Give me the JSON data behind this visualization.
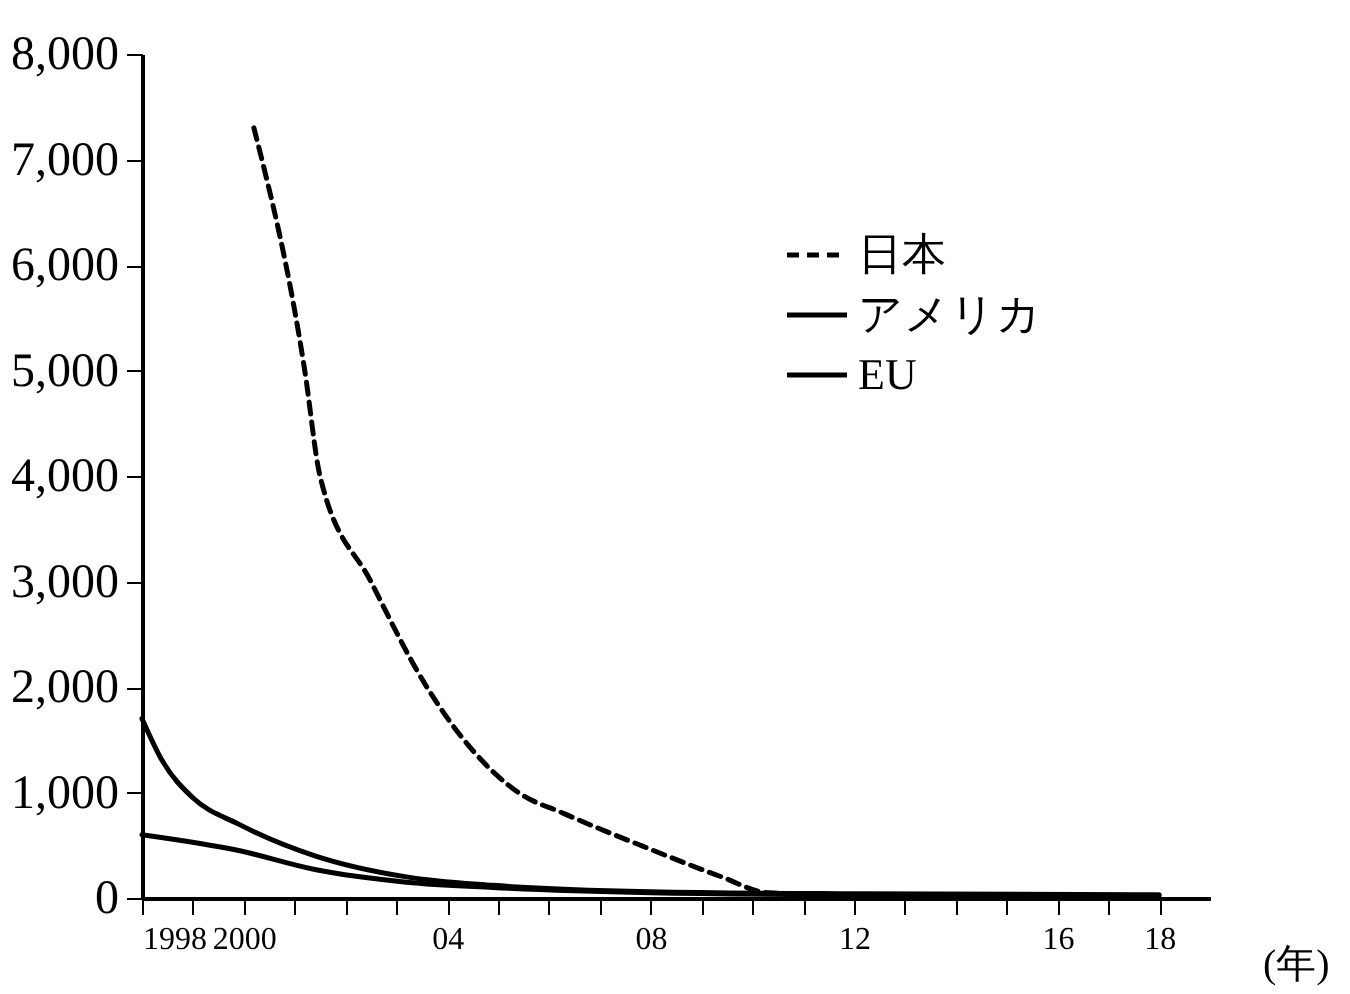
{
  "chart_data": {
    "type": "line",
    "xlabel": "(年)",
    "xlim": [
      1998,
      2019
    ],
    "ylim": [
      0,
      8000
    ],
    "xticks": [
      {
        "value": 1998,
        "label": "1998"
      },
      {
        "value": 1999,
        "label": null
      },
      {
        "value": 2000,
        "label": "2000"
      },
      {
        "value": 2001,
        "label": null
      },
      {
        "value": 2002,
        "label": null
      },
      {
        "value": 2003,
        "label": null
      },
      {
        "value": 2004,
        "label": "04"
      },
      {
        "value": 2005,
        "label": null
      },
      {
        "value": 2006,
        "label": null
      },
      {
        "value": 2007,
        "label": null
      },
      {
        "value": 2008,
        "label": "08"
      },
      {
        "value": 2009,
        "label": null
      },
      {
        "value": 2010,
        "label": null
      },
      {
        "value": 2011,
        "label": null
      },
      {
        "value": 2012,
        "label": "12"
      },
      {
        "value": 2013,
        "label": null
      },
      {
        "value": 2014,
        "label": null
      },
      {
        "value": 2015,
        "label": null
      },
      {
        "value": 2016,
        "label": "16"
      },
      {
        "value": 2017,
        "label": null
      },
      {
        "value": 2018,
        "label": "18"
      }
    ],
    "yticks": [
      {
        "value": 0,
        "label": "0"
      },
      {
        "value": 1000,
        "label": "1,000"
      },
      {
        "value": 2000,
        "label": "2,000"
      },
      {
        "value": 3000,
        "label": "3,000"
      },
      {
        "value": 4000,
        "label": "4,000"
      },
      {
        "value": 5000,
        "label": "5,000"
      },
      {
        "value": 6000,
        "label": "6,000"
      },
      {
        "value": 7000,
        "label": "7,000"
      },
      {
        "value": 8000,
        "label": "8,000"
      }
    ],
    "grid": false,
    "legend": "top right",
    "series": [
      {
        "name": "日本",
        "color": "#000000",
        "line_style": "dashed",
        "x": [
          2000.2,
          2001.2,
          2001.5,
          2002.5,
          2003.6,
          2005.4,
          2006.3,
          2007.8,
          2009.4,
          2010.3,
          2012,
          2015,
          2018
        ],
        "values": [
          7300,
          5000,
          4000,
          3000,
          2000,
          1000,
          800,
          500,
          200,
          50,
          30,
          20,
          20
        ]
      },
      {
        "name": "アメリカ",
        "color": "#000000",
        "line_style": "solid",
        "x": [
          1998,
          1998.4,
          1999,
          1999.9,
          2001.4,
          2003.2,
          2004.9,
          2008,
          2012,
          2018
        ],
        "values": [
          1700,
          1300,
          950,
          700,
          400,
          200,
          120,
          60,
          40,
          30
        ]
      },
      {
        "name": "EU",
        "color": "#000000",
        "line_style": "solid",
        "x": [
          1998,
          1999.9,
          2001.4,
          2003.2,
          2004.9,
          2008,
          2012,
          2018
        ],
        "values": [
          600,
          450,
          270,
          150,
          100,
          50,
          30,
          20
        ]
      }
    ]
  }
}
